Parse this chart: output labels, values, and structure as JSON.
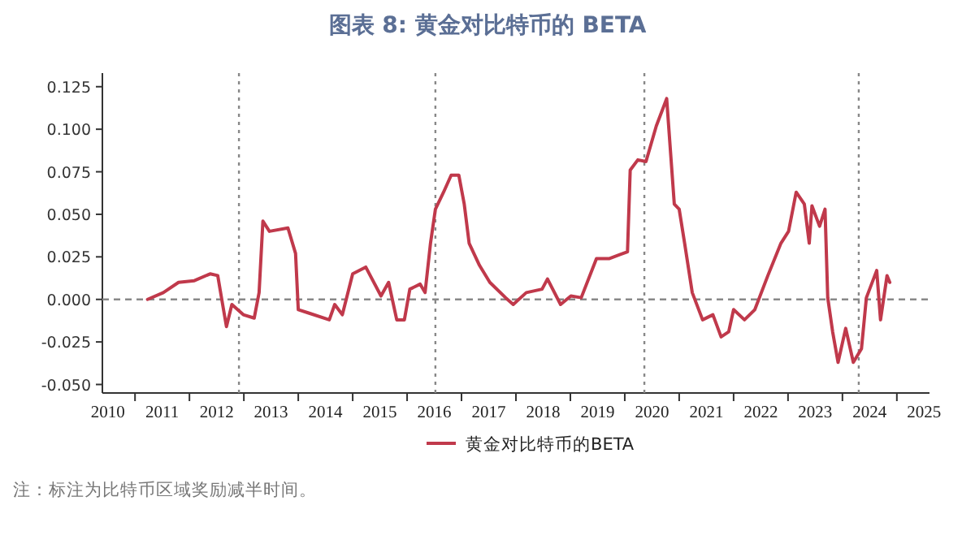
{
  "chart_data": {
    "type": "line",
    "title": "图表 8:   黄金对比特币的 BETA",
    "x": [
      2011.23,
      2011.52,
      2011.8,
      2012.09,
      2012.38,
      2012.52,
      2012.61,
      2012.68,
      2012.78,
      2012.99,
      2013.19,
      2013.28,
      2013.35,
      2013.47,
      2013.81,
      2013.95,
      2014.0,
      2014.19,
      2014.57,
      2014.67,
      2014.81,
      2015.0,
      2015.24,
      2015.52,
      2015.66,
      2015.81,
      2015.95,
      2016.05,
      2016.24,
      2016.33,
      2016.43,
      2016.52,
      2016.67,
      2016.81,
      2016.95,
      2017.05,
      2017.14,
      2017.33,
      2017.52,
      2017.81,
      2017.95,
      2018.19,
      2018.48,
      2018.58,
      2018.82,
      2019.01,
      2019.2,
      2019.48,
      2019.72,
      2020.05,
      2020.1,
      2020.24,
      2020.39,
      2020.58,
      2020.77,
      2020.91,
      2021.0,
      2021.1,
      2021.24,
      2021.43,
      2021.62,
      2021.77,
      2021.91,
      2022.0,
      2022.2,
      2022.39,
      2022.63,
      2022.87,
      2023.01,
      2023.15,
      2023.3,
      2023.39,
      2023.44,
      2023.58,
      2023.68,
      2023.73,
      2023.82,
      2023.92,
      2024.06,
      2024.2,
      2024.35,
      2024.44,
      2024.63,
      2024.7,
      2024.82,
      2024.87
    ],
    "series": [
      {
        "name": "黄金对比特币的BETA",
        "color": "#c0394b",
        "values": [
          0,
          0.004,
          0.01,
          0.011,
          0.015,
          0.014,
          -0.003,
          -0.016,
          -0.003,
          -0.009,
          -0.011,
          0.004,
          0.046,
          0.04,
          0.042,
          0.027,
          -0.006,
          -0.008,
          -0.012,
          -0.003,
          -0.009,
          0.015,
          0.019,
          0.002,
          0.01,
          -0.012,
          -0.012,
          0.006,
          0.009,
          0.004,
          0.033,
          0.053,
          0.063,
          0.073,
          0.073,
          0.056,
          0.033,
          0.02,
          0.01,
          0.001,
          -0.003,
          0.004,
          0.006,
          0.012,
          -0.003,
          0.002,
          0.001,
          0.024,
          0.024,
          0.028,
          0.076,
          0.082,
          0.081,
          0.102,
          0.118,
          0.056,
          0.053,
          0.033,
          0.004,
          -0.012,
          -0.009,
          -0.022,
          -0.019,
          -0.006,
          -0.012,
          -0.006,
          0.014,
          0.033,
          0.04,
          0.063,
          0.056,
          0.033,
          0.055,
          0.043,
          0.053,
          0.001,
          -0.019,
          -0.037,
          -0.017,
          -0.037,
          -0.029,
          0.001,
          0.017,
          -0.012,
          0.014,
          0.01
        ]
      }
    ],
    "xlim": [
      2010.4,
      2025.6
    ],
    "xticks": [
      {
        "value": 2010.5,
        "label": "2010"
      },
      {
        "value": 2011,
        "label": null
      },
      {
        "value": 2011.5,
        "label": "2011"
      },
      {
        "value": 2012,
        "label": null
      },
      {
        "value": 2012.5,
        "label": "2012"
      },
      {
        "value": 2013,
        "label": null
      },
      {
        "value": 2013.5,
        "label": "2013"
      },
      {
        "value": 2014,
        "label": null
      },
      {
        "value": 2014.5,
        "label": "2014"
      },
      {
        "value": 2015,
        "label": null
      },
      {
        "value": 2015.5,
        "label": "2015"
      },
      {
        "value": 2016,
        "label": null
      },
      {
        "value": 2016.5,
        "label": "2016"
      },
      {
        "value": 2017,
        "label": null
      },
      {
        "value": 2017.5,
        "label": "2017"
      },
      {
        "value": 2018,
        "label": null
      },
      {
        "value": 2018.5,
        "label": "2018"
      },
      {
        "value": 2019,
        "label": null
      },
      {
        "value": 2019.5,
        "label": "2019"
      },
      {
        "value": 2020,
        "label": null
      },
      {
        "value": 2020.5,
        "label": "2020"
      },
      {
        "value": 2021,
        "label": null
      },
      {
        "value": 2021.5,
        "label": "2021"
      },
      {
        "value": 2022,
        "label": null
      },
      {
        "value": 2022.5,
        "label": "2022"
      },
      {
        "value": 2023,
        "label": null
      },
      {
        "value": 2023.5,
        "label": "2023"
      },
      {
        "value": 2024,
        "label": null
      },
      {
        "value": 2024.5,
        "label": "2024"
      },
      {
        "value": 2025,
        "label": null
      },
      {
        "value": 2025.5,
        "label": "2025"
      }
    ],
    "ylim": [
      -0.055,
      0.133
    ],
    "yticks": [
      {
        "value": -0.05,
        "label": "-0.050"
      },
      {
        "value": -0.025,
        "label": "-0.025"
      },
      {
        "value": 0,
        "label": "0.000"
      },
      {
        "value": 0.025,
        "label": "0.025"
      },
      {
        "value": 0.05,
        "label": "0.050"
      },
      {
        "value": 0.075,
        "label": "0.075"
      },
      {
        "value": 0.1,
        "label": "0.100"
      },
      {
        "value": 0.125,
        "label": "0.125"
      }
    ],
    "ref_lines": [
      {
        "axis": "y",
        "value": 0,
        "color": "#888888",
        "line_style": "dashed"
      },
      {
        "axis": "x",
        "value": 2012.91,
        "color": "#888888",
        "line_style": "dotted"
      },
      {
        "axis": "x",
        "value": 2016.52,
        "color": "#888888",
        "line_style": "dotted"
      },
      {
        "axis": "x",
        "value": 2020.36,
        "color": "#888888",
        "line_style": "dotted"
      },
      {
        "axis": "x",
        "value": 2024.3,
        "color": "#888888",
        "line_style": "dotted"
      }
    ],
    "grid": false,
    "legend": "bottom",
    "marker": "none",
    "line_style": "solid",
    "annotations": [
      "注：标注为比特币区域奖励减半时间。"
    ]
  }
}
